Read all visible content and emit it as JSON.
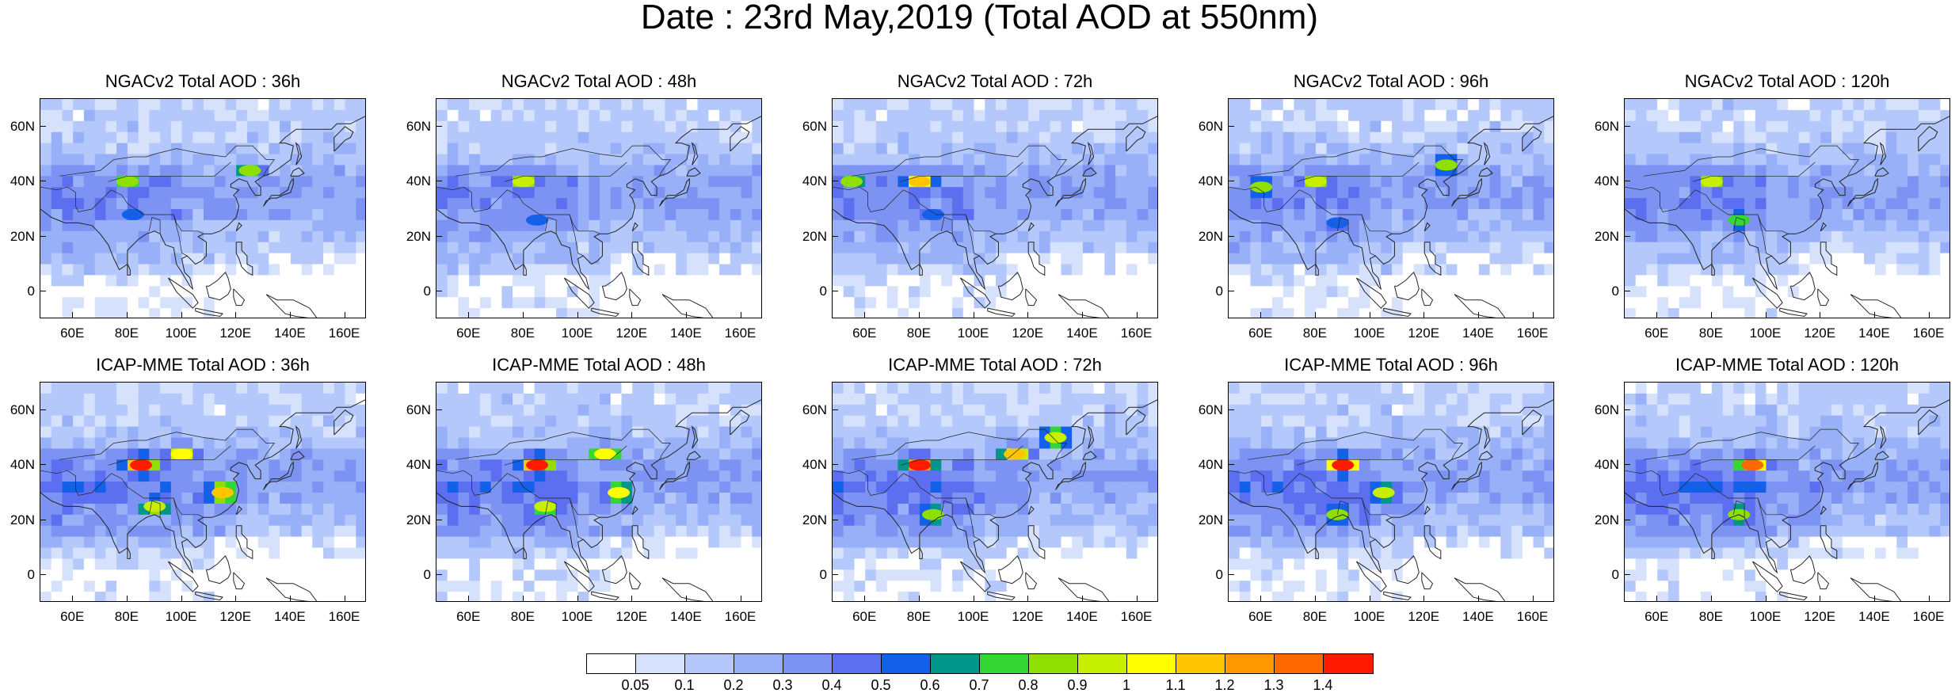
{
  "title": "Date : 23rd May,2019 (Total AOD at 550nm)",
  "axes": {
    "lat_ticks": [
      "60N",
      "40N",
      "20N",
      "0"
    ],
    "lon_ticks": [
      "60E",
      "80E",
      "100E",
      "120E",
      "140E",
      "160E"
    ]
  },
  "colorbar": {
    "labels": [
      "0.05",
      "0.1",
      "0.2",
      "0.3",
      "0.4",
      "0.5",
      "0.6",
      "0.7",
      "0.8",
      "0.9",
      "1",
      "1.1",
      "1.2",
      "1.3",
      "1.4"
    ],
    "colors": [
      "#ffffff",
      "#d6e2fc",
      "#b5c8fb",
      "#97b0f8",
      "#7d93f3",
      "#5b6ff0",
      "#1560e8",
      "#00968a",
      "#33d633",
      "#8fe000",
      "#c7f000",
      "#ffff00",
      "#ffc600",
      "#ff9900",
      "#ff6a00",
      "#ff1a00"
    ]
  },
  "chart_data": {
    "type": "heatmap",
    "variable": "Total AOD at 550nm",
    "date": "23rd May,2019",
    "lon_range": [
      48,
      168
    ],
    "lat_range": [
      -10,
      70
    ],
    "panels": [
      {
        "row": 0,
        "title": "NGACv2 Total AOD : 36h",
        "model": "NGACv2",
        "lead": "36h",
        "hotspots": [
          {
            "lon": 80,
            "lat": 40,
            "aod": 0.8
          },
          {
            "lon": 125,
            "lat": 44,
            "aod": 0.8
          },
          {
            "lon": 82,
            "lat": 28,
            "aod": 0.5
          }
        ]
      },
      {
        "row": 0,
        "title": "NGACv2 Total AOD : 48h",
        "model": "NGACv2",
        "lead": "48h",
        "hotspots": [
          {
            "lon": 80,
            "lat": 40,
            "aod": 0.9
          },
          {
            "lon": 85,
            "lat": 26,
            "aod": 0.5
          }
        ]
      },
      {
        "row": 0,
        "title": "NGACv2 Total AOD : 72h",
        "model": "NGACv2",
        "lead": "72h",
        "hotspots": [
          {
            "lon": 80,
            "lat": 40,
            "aod": 1.1
          },
          {
            "lon": 55,
            "lat": 40,
            "aod": 0.8
          },
          {
            "lon": 85,
            "lat": 28,
            "aod": 0.5
          }
        ]
      },
      {
        "row": 0,
        "title": "NGACv2 Total AOD : 96h",
        "model": "NGACv2",
        "lead": "96h",
        "hotspots": [
          {
            "lon": 80,
            "lat": 40,
            "aod": 0.9
          },
          {
            "lon": 60,
            "lat": 38,
            "aod": 0.8
          },
          {
            "lon": 128,
            "lat": 46,
            "aod": 0.8
          },
          {
            "lon": 88,
            "lat": 25,
            "aod": 0.5
          }
        ]
      },
      {
        "row": 0,
        "title": "NGACv2 Total AOD : 120h",
        "model": "NGACv2",
        "lead": "120h",
        "hotspots": [
          {
            "lon": 80,
            "lat": 40,
            "aod": 0.9
          },
          {
            "lon": 90,
            "lat": 26,
            "aod": 0.7
          }
        ]
      },
      {
        "row": 1,
        "title": "ICAP-MME Total AOD : 36h",
        "model": "ICAP-MME",
        "lead": "36h",
        "hotspots": [
          {
            "lon": 85,
            "lat": 40,
            "aod": 1.4
          },
          {
            "lon": 100,
            "lat": 44,
            "aod": 1.0
          },
          {
            "lon": 115,
            "lat": 30,
            "aod": 1.1
          },
          {
            "lon": 90,
            "lat": 25,
            "aod": 0.9
          }
        ]
      },
      {
        "row": 1,
        "title": "ICAP-MME Total AOD : 48h",
        "model": "ICAP-MME",
        "lead": "48h",
        "hotspots": [
          {
            "lon": 85,
            "lat": 40,
            "aod": 1.4
          },
          {
            "lon": 110,
            "lat": 44,
            "aod": 1.0
          },
          {
            "lon": 115,
            "lat": 30,
            "aod": 1.0
          },
          {
            "lon": 88,
            "lat": 25,
            "aod": 0.9
          }
        ]
      },
      {
        "row": 1,
        "title": "ICAP-MME Total AOD : 72h",
        "model": "ICAP-MME",
        "lead": "72h",
        "hotspots": [
          {
            "lon": 80,
            "lat": 40,
            "aod": 1.4
          },
          {
            "lon": 115,
            "lat": 44,
            "aod": 1.1
          },
          {
            "lon": 130,
            "lat": 50,
            "aod": 0.9
          },
          {
            "lon": 85,
            "lat": 22,
            "aod": 0.8
          }
        ]
      },
      {
        "row": 1,
        "title": "ICAP-MME Total AOD : 96h",
        "model": "ICAP-MME",
        "lead": "96h",
        "hotspots": [
          {
            "lon": 90,
            "lat": 40,
            "aod": 1.4
          },
          {
            "lon": 105,
            "lat": 30,
            "aod": 0.9
          },
          {
            "lon": 88,
            "lat": 22,
            "aod": 0.8
          }
        ]
      },
      {
        "row": 1,
        "title": "ICAP-MME Total AOD : 120h",
        "model": "ICAP-MME",
        "lead": "120h",
        "hotspots": [
          {
            "lon": 95,
            "lat": 40,
            "aod": 1.3
          },
          {
            "lon": 90,
            "lat": 22,
            "aod": 0.8
          }
        ]
      }
    ]
  }
}
